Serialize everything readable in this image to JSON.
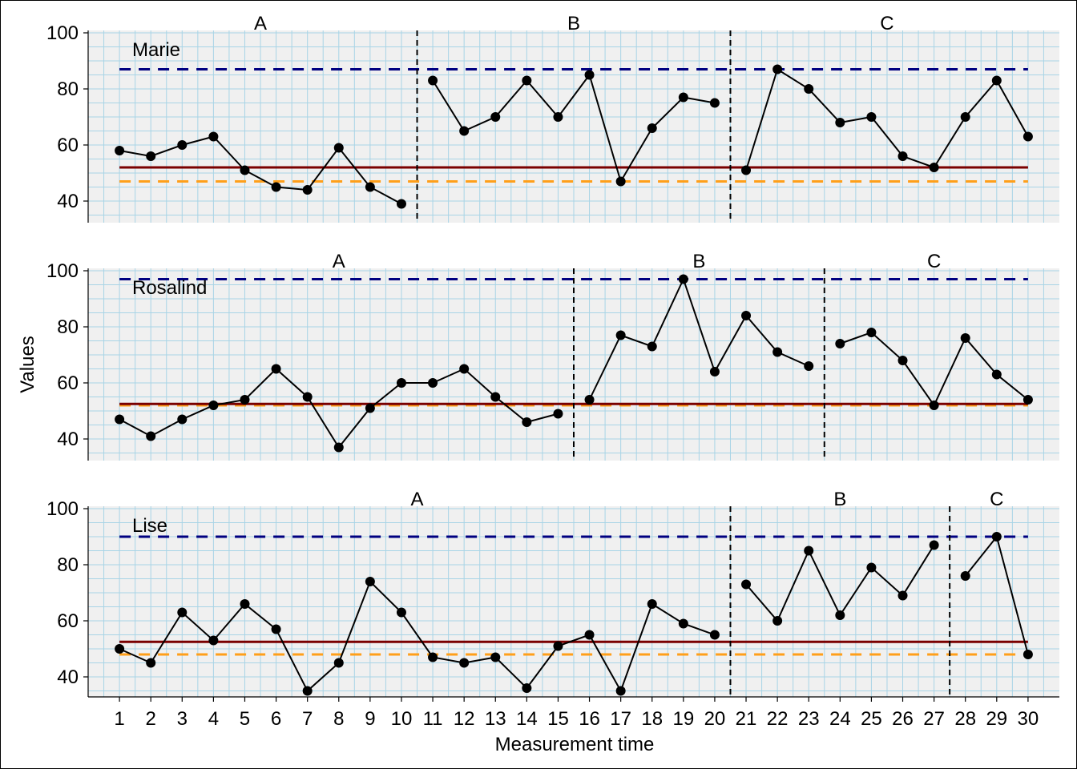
{
  "chart_data": {
    "type": "line",
    "xlabel": "Measurement time",
    "ylabel": "Values",
    "x_ticks": [
      1,
      2,
      3,
      4,
      5,
      6,
      7,
      8,
      9,
      10,
      11,
      12,
      13,
      14,
      15,
      16,
      17,
      18,
      19,
      20,
      21,
      22,
      23,
      24,
      25,
      26,
      27,
      28,
      29,
      30
    ],
    "xlim": [
      0,
      31
    ],
    "ylim": [
      32,
      102
    ],
    "y_ticks": [
      40,
      60,
      80,
      100
    ],
    "grid": true,
    "colors": {
      "panel_bg": "#f0f0f0",
      "grid": "#a8d4e6",
      "series": "#000000",
      "mean_line": "#7a0000",
      "max_line": "#000080",
      "min_line": "#ff9f1a",
      "phase_divider": "#000000"
    },
    "cases": [
      {
        "name": "Marie",
        "phases": [
          {
            "label": "A",
            "x": [
              1,
              2,
              3,
              4,
              5,
              6,
              7,
              8,
              9,
              10
            ],
            "values": [
              58,
              56,
              60,
              63,
              51,
              45,
              44,
              59,
              45,
              39
            ]
          },
          {
            "label": "B",
            "x": [
              11,
              12,
              13,
              14,
              15,
              16,
              17,
              18,
              19,
              20
            ],
            "values": [
              83,
              65,
              70,
              83,
              70,
              85,
              47,
              66,
              77,
              75
            ]
          },
          {
            "label": "C",
            "x": [
              21,
              22,
              23,
              24,
              25,
              26,
              27,
              28,
              29,
              30
            ],
            "values": [
              51,
              87,
              80,
              68,
              70,
              56,
              52,
              70,
              83,
              63
            ]
          }
        ],
        "phase_dividers": [
          10.5,
          20.5
        ],
        "mean_line": 52,
        "max_line": 87,
        "min_line": 47
      },
      {
        "name": "Rosalind",
        "phases": [
          {
            "label": "A",
            "x": [
              1,
              2,
              3,
              4,
              5,
              6,
              7,
              8,
              9,
              10,
              11,
              12,
              13,
              14,
              15
            ],
            "values": [
              47,
              41,
              47,
              52,
              54,
              65,
              55,
              37,
              51,
              60,
              60,
              65,
              55,
              46,
              49
            ]
          },
          {
            "label": "B",
            "x": [
              16,
              17,
              18,
              19,
              20,
              21,
              22,
              23
            ],
            "values": [
              54,
              77,
              73,
              97,
              64,
              84,
              71,
              66
            ]
          },
          {
            "label": "C",
            "x": [
              24,
              25,
              26,
              27,
              28,
              29,
              30
            ],
            "values": [
              74,
              78,
              68,
              52,
              76,
              63,
              54
            ]
          }
        ],
        "phase_dividers": [
          15.5,
          23.5
        ],
        "mean_line": 52.5,
        "max_line": 97,
        "min_line": 52
      },
      {
        "name": "Lise",
        "phases": [
          {
            "label": "A",
            "x": [
              1,
              2,
              3,
              4,
              5,
              6,
              7,
              8,
              9,
              10,
              11,
              12,
              13,
              14,
              15,
              16,
              17,
              18,
              19,
              20
            ],
            "values": [
              50,
              45,
              63,
              53,
              66,
              57,
              35,
              45,
              74,
              63,
              47,
              45,
              47,
              36,
              51,
              55,
              35,
              66,
              59,
              55
            ]
          },
          {
            "label": "B",
            "x": [
              21,
              22,
              23,
              24,
              25,
              26,
              27
            ],
            "values": [
              73,
              60,
              85,
              62,
              79,
              69,
              87
            ]
          },
          {
            "label": "C",
            "x": [
              28,
              29,
              30
            ],
            "values": [
              76,
              90,
              48
            ]
          }
        ],
        "phase_dividers": [
          20.5,
          27.5
        ],
        "mean_line": 52.5,
        "max_line": 90,
        "min_line": 48
      }
    ]
  }
}
